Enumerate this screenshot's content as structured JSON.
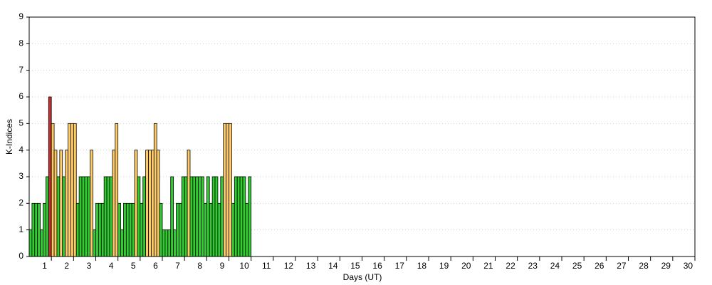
{
  "chart_data": {
    "type": "bar",
    "x_label": "Days (UT)",
    "y_label": "K-Indices",
    "categories": [
      "1",
      "2",
      "3",
      "4",
      "5",
      "6",
      "7",
      "8",
      "9",
      "10",
      "11",
      "12",
      "13",
      "14",
      "15",
      "16",
      "17",
      "18",
      "19",
      "20",
      "21",
      "22",
      "23",
      "24",
      "25",
      "26",
      "27",
      "28",
      "29",
      "30"
    ],
    "values": [
      [
        1,
        2,
        2,
        2,
        1,
        2,
        3,
        6
      ],
      [
        5,
        4,
        3,
        4,
        3,
        4,
        5,
        5
      ],
      [
        5,
        2,
        3,
        3,
        3,
        3,
        4,
        1
      ],
      [
        2,
        2,
        2,
        3,
        3,
        3,
        4,
        5
      ],
      [
        2,
        1,
        2,
        2,
        2,
        2,
        4,
        3
      ],
      [
        2,
        3,
        4,
        4,
        4,
        5,
        4,
        2
      ],
      [
        1,
        1,
        1,
        3,
        1,
        2,
        2,
        3
      ],
      [
        3,
        4,
        3,
        3,
        3,
        3,
        3,
        2
      ],
      [
        3,
        2,
        3,
        3,
        2,
        3,
        5,
        5
      ],
      [
        5,
        2,
        3,
        3,
        3,
        3,
        2,
        3
      ],
      null,
      null,
      null,
      null,
      null,
      null,
      null,
      null,
      null,
      null,
      null,
      null,
      null,
      null,
      null,
      null,
      null,
      null,
      null,
      null
    ],
    "color_scale": [
      {
        "from": 0,
        "color": "#33cc33"
      },
      {
        "from": 4,
        "color": "#ffcc66"
      },
      {
        "from": 6,
        "color": "#c03030"
      }
    ],
    "ylim": [
      0,
      9
    ],
    "yticks": [
      0,
      1,
      2,
      3,
      4,
      5,
      6,
      7,
      8,
      9
    ],
    "grid": true
  }
}
